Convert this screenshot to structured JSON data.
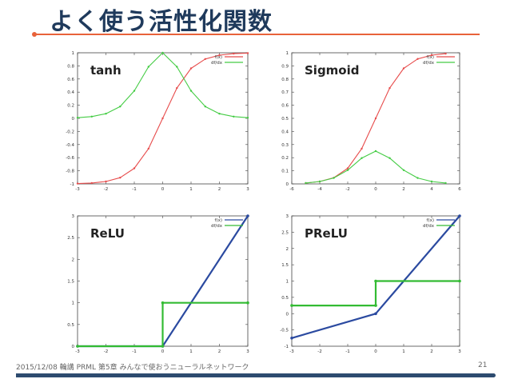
{
  "slide": {
    "title": "よく使う活性化関数",
    "footer": "2015/12/08 輪講 PRML 第5章 みんなで使おうニューラルネットワーク",
    "page_number": "21",
    "accent_color": "#2d4b6f"
  },
  "chart_data": [
    {
      "type": "line",
      "title": "tanh",
      "xlim": [
        -3,
        3
      ],
      "ylim": [
        -1,
        1
      ],
      "xticks": [
        -3,
        -2,
        -1,
        0,
        1,
        2,
        3
      ],
      "yticks": [
        -1,
        -0.8,
        -0.6,
        -0.4,
        -0.2,
        0,
        0.2,
        0.4,
        0.6,
        0.8,
        1
      ],
      "legend_position": "top-right",
      "series": [
        {
          "name": "f(x)",
          "color": "#e74c4c",
          "x": [
            -3,
            -2.5,
            -2,
            -1.5,
            -1,
            -0.5,
            0,
            0.5,
            1,
            1.5,
            2,
            2.5,
            3
          ],
          "y": [
            -0.995,
            -0.987,
            -0.964,
            -0.905,
            -0.762,
            -0.462,
            0,
            0.462,
            0.762,
            0.905,
            0.964,
            0.987,
            0.995
          ]
        },
        {
          "name": "df/dx",
          "color": "#44cc44",
          "x": [
            -3,
            -2.5,
            -2,
            -1.5,
            -1,
            -0.5,
            0,
            0.5,
            1,
            1.5,
            2,
            2.5,
            3
          ],
          "y": [
            0.01,
            0.027,
            0.071,
            0.181,
            0.42,
            0.787,
            1,
            0.787,
            0.42,
            0.181,
            0.071,
            0.027,
            0.01
          ]
        }
      ]
    },
    {
      "type": "line",
      "title": "Sigmoid",
      "xlim": [
        -6,
        6
      ],
      "ylim": [
        0,
        1
      ],
      "xticks": [
        -6,
        -4,
        -2,
        0,
        2,
        4,
        6
      ],
      "yticks": [
        0,
        0.1,
        0.2,
        0.3,
        0.4,
        0.5,
        0.6,
        0.7,
        0.8,
        0.9,
        1
      ],
      "legend_position": "top-right",
      "series": [
        {
          "name": "f(x)",
          "color": "#e74c4c",
          "x": [
            -5,
            -4,
            -3,
            -2,
            -1,
            0,
            1,
            2,
            3,
            4,
            5
          ],
          "y": [
            0.007,
            0.018,
            0.047,
            0.119,
            0.269,
            0.5,
            0.731,
            0.881,
            0.953,
            0.982,
            0.993
          ]
        },
        {
          "name": "df/dx",
          "color": "#44cc44",
          "x": [
            -5,
            -4,
            -3,
            -2,
            -1,
            0,
            1,
            2,
            3,
            4,
            5
          ],
          "y": [
            0.007,
            0.018,
            0.045,
            0.105,
            0.197,
            0.25,
            0.197,
            0.105,
            0.045,
            0.018,
            0.007
          ]
        }
      ]
    },
    {
      "type": "line",
      "title": "ReLU",
      "xlim": [
        -3,
        3
      ],
      "ylim": [
        0,
        3
      ],
      "xticks": [
        -3,
        -2,
        -1,
        0,
        1,
        2,
        3
      ],
      "yticks": [
        0,
        0.5,
        1,
        1.5,
        2,
        2.5,
        3
      ],
      "legend_position": "top-right",
      "series": [
        {
          "name": "f(x)",
          "color": "#2b4aa0",
          "x": [
            -3,
            0,
            3
          ],
          "y": [
            0,
            0,
            3
          ]
        },
        {
          "name": "df/dx",
          "color": "#33bb33",
          "x": [
            -3,
            0,
            0,
            3
          ],
          "y": [
            0,
            0,
            1,
            1
          ]
        }
      ]
    },
    {
      "type": "line",
      "title": "PReLU",
      "xlim": [
        -3,
        3
      ],
      "ylim": [
        -1,
        3
      ],
      "xticks": [
        -3,
        -2,
        -1,
        0,
        1,
        2,
        3
      ],
      "yticks": [
        -1,
        -0.5,
        0,
        0.5,
        1,
        1.5,
        2,
        2.5,
        3
      ],
      "legend_position": "top-right",
      "series": [
        {
          "name": "f(x)",
          "color": "#2b4aa0",
          "x": [
            -3,
            0,
            3
          ],
          "y": [
            -0.75,
            0,
            3
          ]
        },
        {
          "name": "df/dx",
          "color": "#33bb33",
          "x": [
            -3,
            0,
            0,
            3
          ],
          "y": [
            0.25,
            0.25,
            1,
            1
          ]
        }
      ]
    }
  ]
}
